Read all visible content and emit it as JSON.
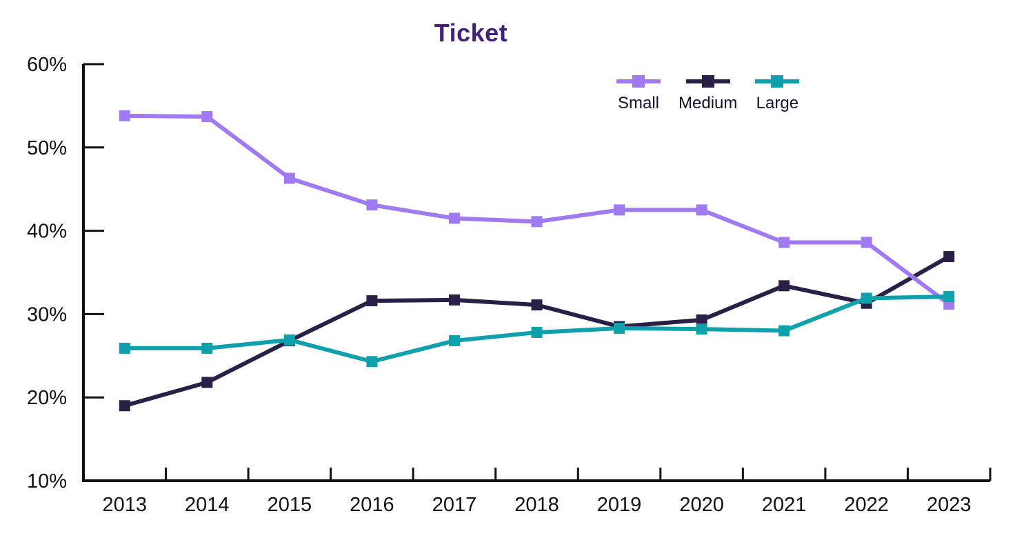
{
  "page": {
    "background": "#ffffff"
  },
  "chart_data": {
    "type": "line",
    "title": "Ticket",
    "title_color": "#422179",
    "axis_color": "#111111",
    "tick_label_color": "#111111",
    "categories": [
      "2013",
      "2014",
      "2015",
      "2016",
      "2017",
      "2018",
      "2019",
      "2020",
      "2021",
      "2022",
      "2023"
    ],
    "series": [
      {
        "name": "Small",
        "color": "#a07af0",
        "values": [
          53.8,
          53.7,
          46.3,
          43.1,
          41.5,
          41.1,
          42.5,
          42.5,
          38.6,
          38.6,
          31.2
        ]
      },
      {
        "name": "Medium",
        "color": "#2a2045",
        "values": [
          19.0,
          21.8,
          26.8,
          31.6,
          31.7,
          31.1,
          28.5,
          29.3,
          33.4,
          31.3,
          36.9
        ]
      },
      {
        "name": "Large",
        "color": "#10a0ac",
        "values": [
          25.9,
          25.9,
          26.9,
          24.3,
          26.8,
          27.8,
          28.3,
          28.2,
          28.0,
          31.9,
          32.1
        ]
      }
    ],
    "xlabel": "",
    "ylabel": "",
    "ylim": [
      10,
      60
    ],
    "yticks": [
      10,
      20,
      30,
      40,
      50,
      60
    ],
    "ytick_suffix": "%",
    "grid": false,
    "legend_position": "top-right",
    "marker": "square"
  }
}
